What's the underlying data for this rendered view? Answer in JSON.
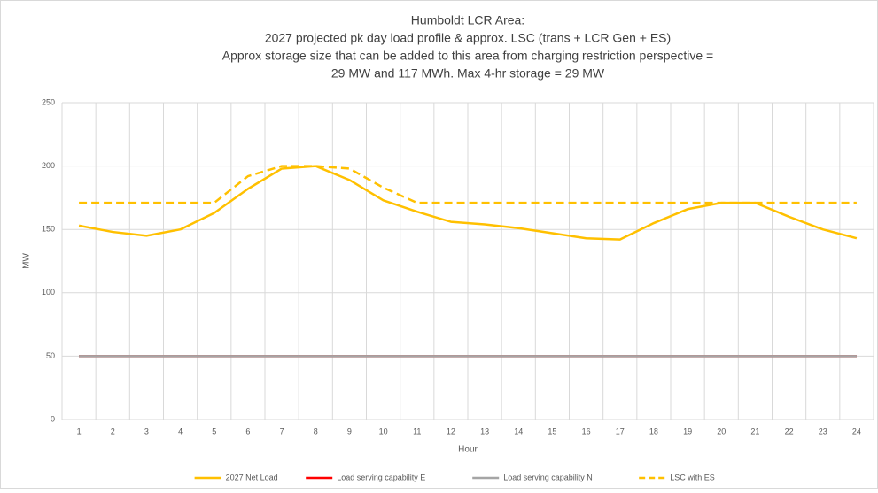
{
  "chart_data": {
    "type": "line",
    "title": [
      "Humboldt LCR Area:",
      "2027 projected pk day load profile & approx. LSC (trans + LCR Gen + ES)",
      "Approx storage size that can be added to this area from charging restriction perspective =",
      "29 MW and 117 MWh. Max 4-hr storage = 29 MW"
    ],
    "xlabel": "Hour",
    "ylabel": "MW",
    "categories": [
      1,
      2,
      3,
      4,
      5,
      6,
      7,
      8,
      9,
      10,
      11,
      12,
      13,
      14,
      15,
      16,
      17,
      18,
      19,
      20,
      21,
      22,
      23,
      24
    ],
    "series": [
      {
        "name": "2027 Net Load",
        "color": "#ffc000",
        "dashed": false,
        "values": [
          153,
          148,
          145,
          150,
          163,
          182,
          198,
          200,
          189,
          173,
          164,
          156,
          154,
          151,
          147,
          143,
          142,
          155,
          166,
          171,
          171,
          160,
          150,
          143
        ]
      },
      {
        "name": "Load serving capability E",
        "color": "#ff0000",
        "dashed": false,
        "values": [
          50,
          50,
          50,
          50,
          50,
          50,
          50,
          50,
          50,
          50,
          50,
          50,
          50,
          50,
          50,
          50,
          50,
          50,
          50,
          50,
          50,
          50,
          50,
          50
        ]
      },
      {
        "name": "Load serving capability N",
        "color": "#a5a5a5",
        "dashed": false,
        "values": [
          50,
          50,
          50,
          50,
          50,
          50,
          50,
          50,
          50,
          50,
          50,
          50,
          50,
          50,
          50,
          50,
          50,
          50,
          50,
          50,
          50,
          50,
          50,
          50
        ]
      },
      {
        "name": "LSC with ES",
        "color": "#ffc000",
        "dashed": true,
        "values": [
          171,
          171,
          171,
          171,
          171,
          192,
          200,
          200,
          198,
          183,
          171,
          171,
          171,
          171,
          171,
          171,
          171,
          171,
          171,
          171,
          171,
          171,
          171,
          171
        ]
      }
    ],
    "ylim": [
      0,
      250
    ],
    "yticks": [
      0,
      50,
      100,
      150,
      200,
      250
    ],
    "grid": true,
    "legend": "bottom"
  }
}
